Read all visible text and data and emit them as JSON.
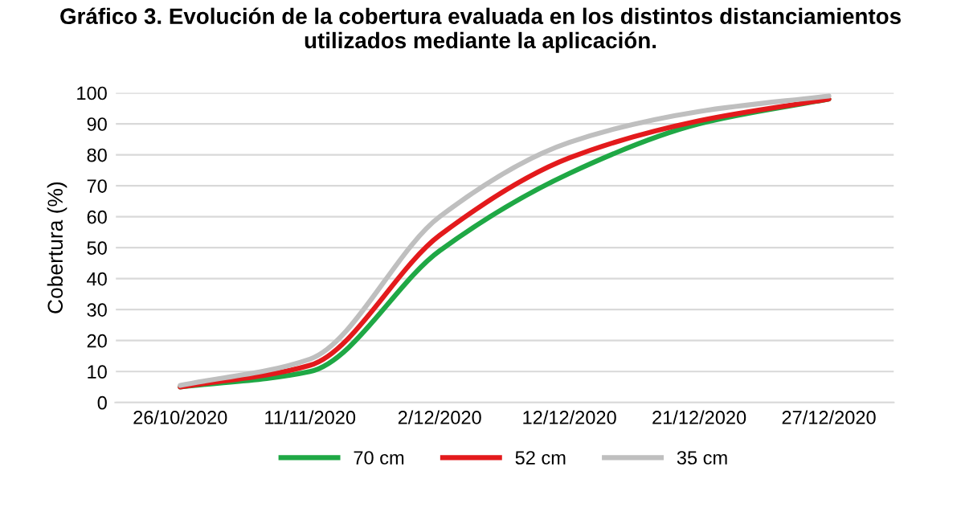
{
  "chart_data": {
    "type": "line",
    "title": "Gráfico 3. Evolución de la cobertura evaluada en los distintos distanciamientos\nutilizados mediante la aplicación.",
    "ylabel": "Cobertura (%)",
    "categories": [
      "26/10/2020",
      "11/11/2020",
      "2/12/2020",
      "12/12/2020",
      "21/12/2020",
      "27/12/2020"
    ],
    "series": [
      {
        "name": "70 cm",
        "color": "#1fa845",
        "values": [
          5,
          10,
          49,
          74,
          90,
          98
        ]
      },
      {
        "name": "52 cm",
        "color": "#e31a1c",
        "values": [
          5,
          12,
          54,
          79,
          91,
          98
        ]
      },
      {
        "name": "35 cm",
        "color": "#bfbfbf",
        "values": [
          5.5,
          14,
          60,
          84,
          94,
          99
        ]
      }
    ],
    "ylim": [
      0,
      100
    ],
    "yticks": [
      0,
      10,
      20,
      30,
      40,
      50,
      60,
      70,
      80,
      90,
      100
    ],
    "grid": "y",
    "legend": "bottom",
    "marker": "none",
    "line_style": "solid"
  }
}
